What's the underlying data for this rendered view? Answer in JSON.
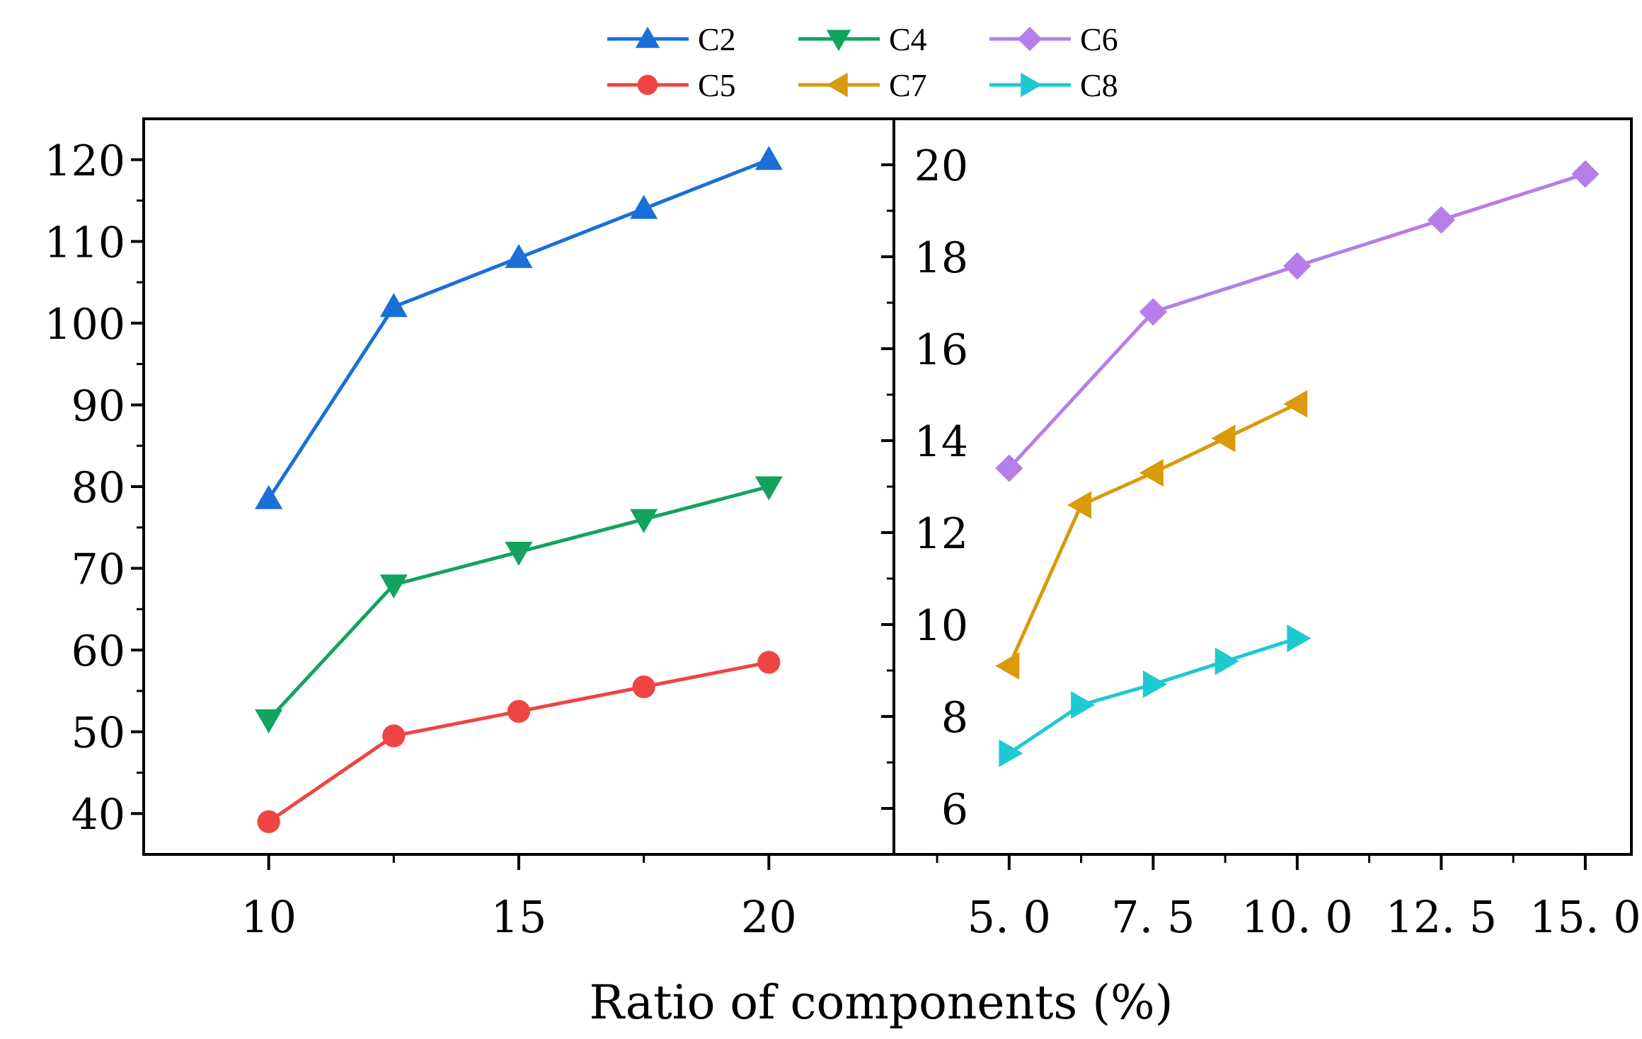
{
  "chart_data": {
    "type": "line",
    "xlabel": "Ratio of components (%)",
    "legend": {
      "placement": "top-center",
      "entries": [
        {
          "name": "C2",
          "color": "#1a6fd8",
          "marker": "triangle-up"
        },
        {
          "name": "C4",
          "color": "#13a35f",
          "marker": "triangle-down"
        },
        {
          "name": "C6",
          "color": "#b57ee8",
          "marker": "diamond"
        },
        {
          "name": "C5",
          "color": "#ef4444",
          "marker": "circle"
        },
        {
          "name": "C7",
          "color": "#d99a0b",
          "marker": "triangle-left"
        },
        {
          "name": "C8",
          "color": "#1ccad0",
          "marker": "triangle-right"
        }
      ]
    },
    "panels": [
      {
        "id": "left",
        "xlim": [
          7.5,
          22.5
        ],
        "ylim": [
          35,
          125
        ],
        "xticks": [
          10,
          15,
          20
        ],
        "xtick_labels": [
          "10",
          "15",
          "20"
        ],
        "yticks": [
          40,
          50,
          60,
          70,
          80,
          90,
          100,
          110,
          120
        ],
        "ytick_labels": [
          "40",
          "50",
          "60",
          "70",
          "80",
          "90",
          "100",
          "110",
          "120"
        ],
        "series": [
          {
            "name": "C2",
            "color": "#1a6fd8",
            "marker": "triangle-up",
            "x": [
              10,
              12.5,
              15,
              17.5,
              20
            ],
            "y": [
              78.5,
              102,
              108,
              114,
              120
            ]
          },
          {
            "name": "C4",
            "color": "#13a35f",
            "marker": "triangle-down",
            "x": [
              10,
              12.5,
              15,
              17.5,
              20
            ],
            "y": [
              51.5,
              68,
              72,
              76,
              80
            ]
          },
          {
            "name": "C5",
            "color": "#ef4444",
            "marker": "circle",
            "x": [
              10,
              12.5,
              15,
              17.5,
              20
            ],
            "y": [
              39,
              49.5,
              52.5,
              55.5,
              58.5
            ]
          }
        ]
      },
      {
        "id": "right",
        "xlim": [
          3.0,
          15.8
        ],
        "ylim": [
          5.0,
          21.0
        ],
        "xticks": [
          5.0,
          7.5,
          10.0,
          12.5,
          15.0
        ],
        "xtick_labels": [
          "5. 0",
          "7. 5",
          "10. 0",
          "12. 5",
          "15. 0"
        ],
        "yticks": [
          6,
          8,
          10,
          12,
          14,
          16,
          18,
          20
        ],
        "ytick_labels": [
          "6",
          "8",
          "10",
          "12",
          "14",
          "16",
          "18",
          "20"
        ],
        "series": [
          {
            "name": "C6",
            "color": "#b57ee8",
            "marker": "diamond",
            "x": [
              5.0,
              7.5,
              10.0,
              12.5,
              15.0
            ],
            "y": [
              13.4,
              16.8,
              17.8,
              18.8,
              19.8
            ]
          },
          {
            "name": "C7",
            "color": "#d99a0b",
            "marker": "triangle-left",
            "x": [
              5.0,
              6.25,
              7.5,
              8.75,
              10.0
            ],
            "y": [
              9.1,
              12.6,
              13.3,
              14.05,
              14.8
            ]
          },
          {
            "name": "C8",
            "color": "#1ccad0",
            "marker": "triangle-right",
            "x": [
              5.0,
              6.25,
              7.5,
              8.75,
              10.0
            ],
            "y": [
              7.2,
              8.25,
              8.7,
              9.2,
              9.7
            ]
          }
        ]
      }
    ]
  }
}
